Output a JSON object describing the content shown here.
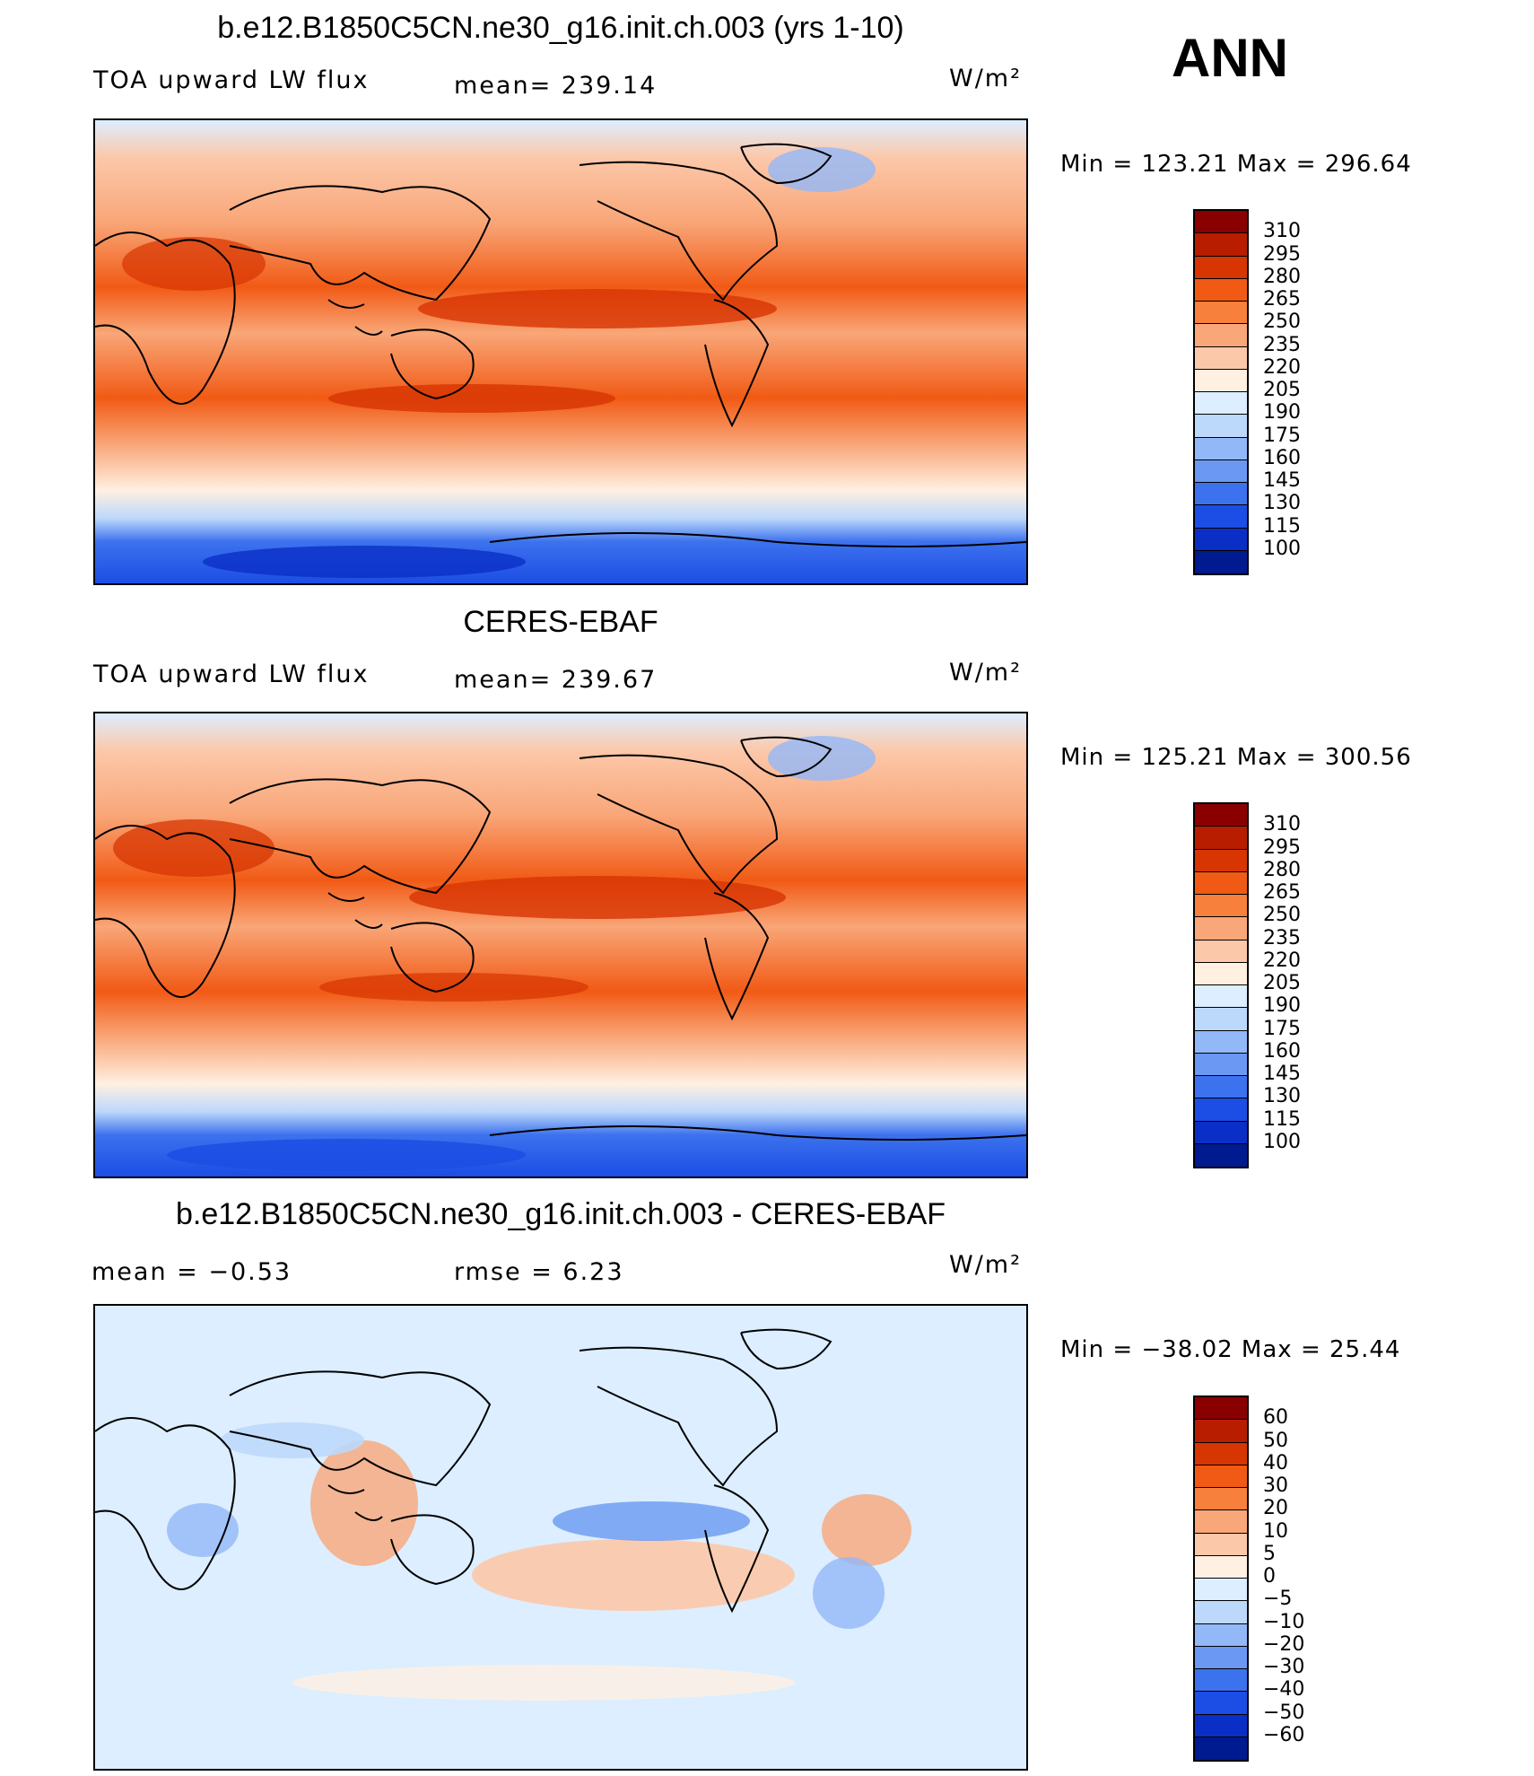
{
  "season": "ANN",
  "panels": [
    {
      "title": "b.e12.B1850C5CN.ne30_g16.init.ch.003 (yrs 1-10)",
      "left_label": "TOA upward LW flux",
      "mid_label": "mean= 239.14",
      "units": "W/m²",
      "minmax": "Min = 123.21 Max = 296.64"
    },
    {
      "title": "CERES-EBAF",
      "left_label": "TOA upward LW flux",
      "mid_label": "mean= 239.67",
      "units": "W/m²",
      "minmax": "Min = 125.21 Max = 300.56"
    },
    {
      "title": "b.e12.B1850C5CN.ne30_g16.init.ch.003 - CERES-EBAF",
      "left_label": "mean = −0.53",
      "mid_label": "rmse = 6.23",
      "units": "W/m²",
      "minmax": "Min = −38.02 Max = 25.44"
    }
  ],
  "colorbars": {
    "abs": {
      "labels": [
        "310",
        "295",
        "280",
        "265",
        "250",
        "235",
        "220",
        "205",
        "190",
        "175",
        "160",
        "145",
        "130",
        "115",
        "100"
      ],
      "colors": [
        "#8a0000",
        "#b81d00",
        "#d73502",
        "#f15a15",
        "#f7803c",
        "#f9a678",
        "#fcc8aa",
        "#fff0e2",
        "#dceeff",
        "#bcd8fb",
        "#93b8f8",
        "#6a98f2",
        "#3d72ee",
        "#1c4de4",
        "#0a2fc7",
        "#001a8f"
      ]
    },
    "diff": {
      "labels": [
        "60",
        "50",
        "40",
        "30",
        "20",
        "10",
        "5",
        "0",
        "−5",
        "−10",
        "−20",
        "−30",
        "−40",
        "−50",
        "−60"
      ],
      "colors": [
        "#8a0000",
        "#b81d00",
        "#d73502",
        "#f15a15",
        "#f7803c",
        "#f9a678",
        "#fcc8aa",
        "#fff0e2",
        "#dceeff",
        "#bcd8fb",
        "#93b8f8",
        "#6a98f2",
        "#3d72ee",
        "#1c4de4",
        "#0a2fc7",
        "#001a8f"
      ]
    }
  }
}
